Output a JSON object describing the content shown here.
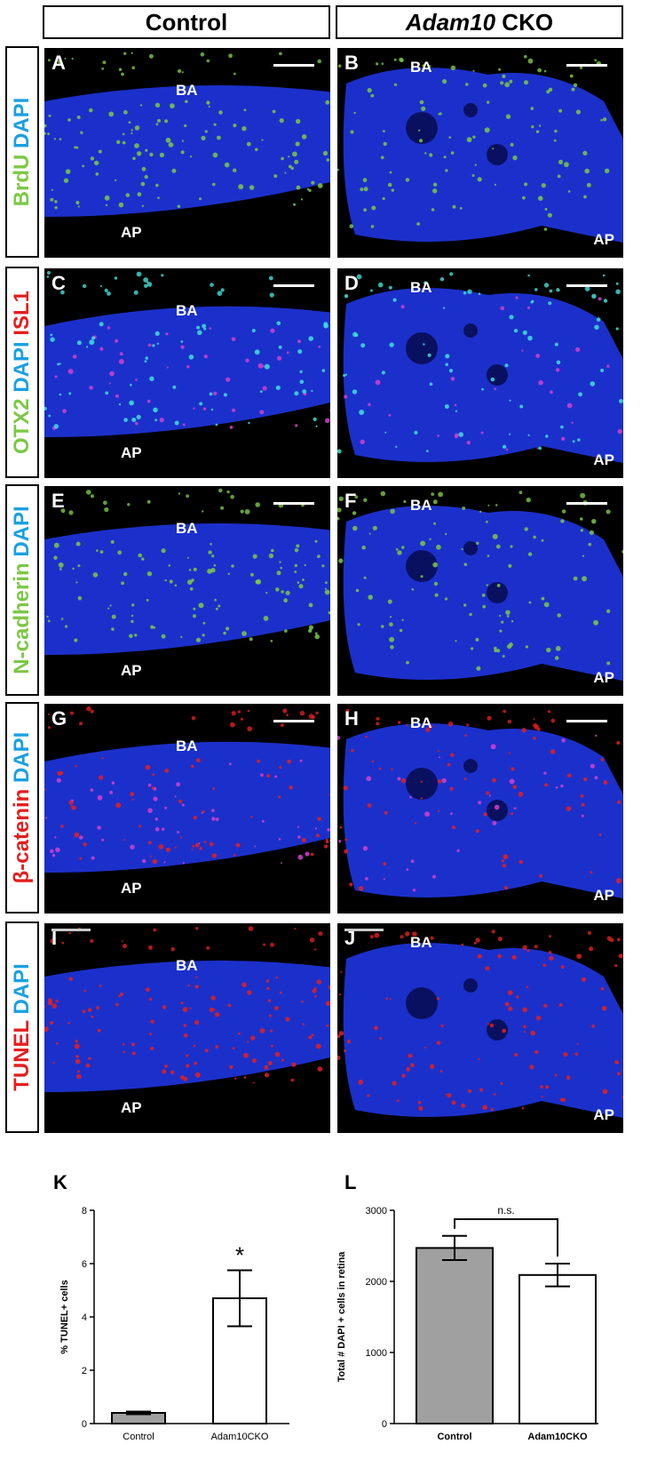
{
  "columns": {
    "control": "Control",
    "cko_gene": "Adam10",
    "cko_suffix": " CKO"
  },
  "rows": [
    {
      "parts": [
        {
          "t": "BrdU",
          "c": "green"
        },
        {
          "t": " DAPI",
          "c": "blue"
        }
      ]
    },
    {
      "parts": [
        {
          "t": "OTX2",
          "c": "green"
        },
        {
          "t": " DAPI",
          "c": "blue"
        },
        {
          "t": " ISL1",
          "c": "red"
        }
      ]
    },
    {
      "parts": [
        {
          "t": "N-cadherin",
          "c": "green"
        },
        {
          "t": " DAPI",
          "c": "blue"
        }
      ]
    },
    {
      "parts": [
        {
          "t": "β-catenin",
          "c": "red"
        },
        {
          "t": " DAPI",
          "c": "blue"
        }
      ]
    },
    {
      "parts": [
        {
          "t": "TUNEL",
          "c": "red"
        },
        {
          "t": " DAPI",
          "c": "blue"
        }
      ]
    }
  ],
  "panels": [
    {
      "letter": "A",
      "basal": "BA",
      "apical": "AP"
    },
    {
      "letter": "B",
      "basal": "BA",
      "apical": "AP"
    },
    {
      "letter": "C",
      "basal": "BA",
      "apical": "AP"
    },
    {
      "letter": "D",
      "basal": "BA",
      "apical": "AP"
    },
    {
      "letter": "E",
      "basal": "BA",
      "apical": "AP"
    },
    {
      "letter": "F",
      "basal": "BA",
      "apical": "AP"
    },
    {
      "letter": "G",
      "basal": "BA",
      "apical": "AP"
    },
    {
      "letter": "H",
      "basal": "BA",
      "apical": "AP"
    },
    {
      "letter": "I",
      "basal": "BA",
      "apical": "AP"
    },
    {
      "letter": "J",
      "basal": "BA",
      "apical": "AP"
    }
  ],
  "colors": {
    "dapi": "#1e35e0",
    "green": "#7cc846",
    "red": "#e41e1e",
    "cyan": "#40e0d8",
    "magenta": "#d040d0"
  },
  "chart_data": [
    {
      "panel": "K",
      "type": "bar",
      "categories": [
        "Control",
        "Adam10CKO"
      ],
      "values": [
        0.4,
        4.7
      ],
      "errors": [
        0.05,
        1.05
      ],
      "ylabel": "% TUNEL+ cells",
      "ylim": [
        0,
        8
      ],
      "yticks": [
        0,
        2,
        4,
        6,
        8
      ],
      "bar_colors": [
        "#a0a0a0",
        "#ffffff"
      ],
      "annotation": "*"
    },
    {
      "panel": "L",
      "type": "bar",
      "categories": [
        "Control",
        "Adam10CKO"
      ],
      "values": [
        2470,
        2090
      ],
      "errors": [
        170,
        160
      ],
      "ylabel": "Total # DAPI + cells in retina",
      "ylim": [
        0,
        3000
      ],
      "yticks": [
        0,
        1000,
        2000,
        3000
      ],
      "bar_colors": [
        "#a0a0a0",
        "#ffffff"
      ],
      "annotation": "n.s."
    }
  ]
}
